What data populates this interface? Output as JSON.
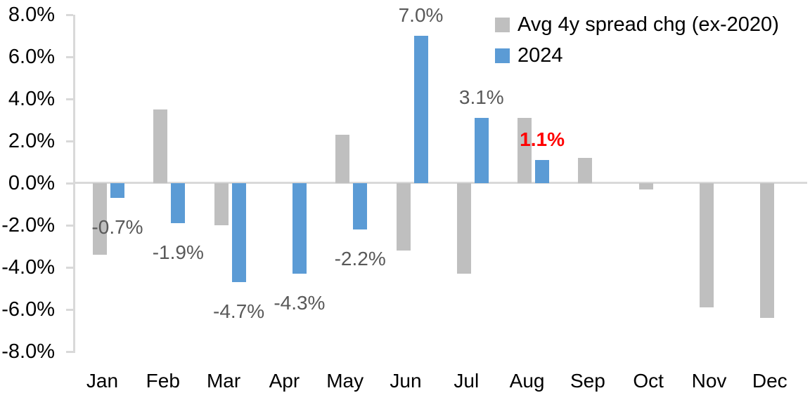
{
  "chart_data": {
    "type": "bar",
    "categories": [
      "Jan",
      "Feb",
      "Mar",
      "Apr",
      "May",
      "Jun",
      "Jul",
      "Aug",
      "Sep",
      "Oct",
      "Nov",
      "Dec"
    ],
    "series": [
      {
        "name": "Avg 4y spread chg (ex-2020)",
        "color": "#bfbfbf",
        "values": [
          -3.4,
          3.5,
          -2.0,
          0.0,
          2.3,
          -3.2,
          -4.3,
          3.1,
          1.2,
          -0.3,
          -5.9,
          -6.4
        ]
      },
      {
        "name": "2024",
        "color": "#5b9bd5",
        "values": [
          -0.7,
          -1.9,
          -4.7,
          -4.3,
          -2.2,
          7.0,
          3.1,
          1.1,
          null,
          null,
          null,
          null
        ]
      }
    ],
    "data_labels": [
      {
        "category": "Jan",
        "series": "2024",
        "text": "-0.7%",
        "color": "#595959",
        "bold": false
      },
      {
        "category": "Feb",
        "series": "2024",
        "text": "-1.9%",
        "color": "#595959",
        "bold": false
      },
      {
        "category": "Mar",
        "series": "2024",
        "text": "-4.7%",
        "color": "#595959",
        "bold": false
      },
      {
        "category": "Apr",
        "series": "2024",
        "text": "-4.3%",
        "color": "#595959",
        "bold": false
      },
      {
        "category": "May",
        "series": "2024",
        "text": "-2.2%",
        "color": "#595959",
        "bold": false
      },
      {
        "category": "Jun",
        "series": "2024",
        "text": "7.0%",
        "color": "#595959",
        "bold": false
      },
      {
        "category": "Jul",
        "series": "2024",
        "text": "3.1%",
        "color": "#595959",
        "bold": false
      },
      {
        "category": "Aug",
        "series": "2024",
        "text": "1.1%",
        "color": "#ff0000",
        "bold": true
      }
    ],
    "y_axis": {
      "min": -8,
      "max": 8,
      "step": 2,
      "tick_labels": [
        "8.0%",
        "6.0%",
        "4.0%",
        "2.0%",
        "0.0%",
        "-2.0%",
        "-4.0%",
        "-6.0%",
        "-8.0%"
      ]
    },
    "legend": {
      "position": "top-right",
      "entries": [
        {
          "label": "Avg 4y spread chg (ex-2020)",
          "color": "#bfbfbf"
        },
        {
          "label": "2024",
          "color": "#5b9bd5"
        }
      ]
    },
    "grid": false,
    "axis_color": "#d9d9d9",
    "label_color": "#595959"
  }
}
